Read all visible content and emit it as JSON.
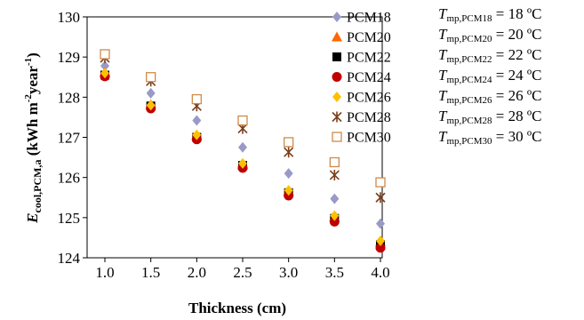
{
  "chart_data": {
    "type": "scatter",
    "xlabel": "Thickness (cm)",
    "ylabel": {
      "symbol": "E",
      "subscript": "cool,PCM,a",
      "unit_open": " (kWh m",
      "unit_sup1": "-2",
      "unit_mid": "year",
      "unit_sup2": "-1",
      "unit_close": ")"
    },
    "x": [
      1.0,
      1.5,
      2.0,
      2.5,
      3.0,
      3.5,
      4.0
    ],
    "x_tick_labels": [
      "1.0",
      "1.5",
      "2.0",
      "2.5",
      "3.0",
      "3.5",
      "4.0"
    ],
    "xlim": [
      1.0,
      4.0
    ],
    "ylim": [
      124,
      130
    ],
    "y_ticks": [
      124,
      125,
      126,
      127,
      128,
      129,
      130
    ],
    "grid": false,
    "legend_position": "right",
    "series": [
      {
        "name": "PCM18",
        "marker": "diamond",
        "color": "#9a9ac8",
        "values": [
          128.78,
          128.1,
          127.42,
          126.75,
          126.1,
          125.47,
          124.85
        ]
      },
      {
        "name": "PCM20",
        "marker": "triangle",
        "color": "#ff6600",
        "values": [
          128.62,
          127.82,
          127.05,
          126.32,
          125.66,
          125.02,
          124.4
        ]
      },
      {
        "name": "PCM22",
        "marker": "square",
        "color": "#000000",
        "values": [
          128.55,
          127.78,
          127.0,
          126.3,
          125.62,
          124.98,
          124.33
        ]
      },
      {
        "name": "PCM24",
        "marker": "circle",
        "color": "#c00000",
        "values": [
          128.52,
          127.72,
          126.95,
          126.24,
          125.55,
          124.9,
          124.25
        ]
      },
      {
        "name": "PCM26",
        "marker": "diamond",
        "color": "#ffc000",
        "values": [
          128.6,
          127.8,
          127.06,
          126.35,
          125.68,
          125.05,
          124.42
        ]
      },
      {
        "name": "PCM28",
        "marker": "star",
        "color": "#7a3f1d",
        "values": [
          128.98,
          128.4,
          127.78,
          127.22,
          126.63,
          126.06,
          125.5
        ]
      },
      {
        "name": "PCM30",
        "marker": "open-square",
        "color": "#d08a4a",
        "values": [
          129.07,
          128.5,
          127.95,
          127.42,
          126.88,
          126.38,
          125.88
        ]
      }
    ]
  },
  "annotations": [
    {
      "symbol": "T",
      "sub": "mp,PCM18",
      "text": " = 18 ºC"
    },
    {
      "symbol": "T",
      "sub": "mp,PCM20",
      "text": " = 20 ºC"
    },
    {
      "symbol": "T",
      "sub": "mp,PCM22",
      "text": " = 22 ºC"
    },
    {
      "symbol": "T",
      "sub": "mp,PCM24",
      "text": " = 24 ºC"
    },
    {
      "symbol": "T",
      "sub": "mp,PCM26",
      "text": " = 26 ºC"
    },
    {
      "symbol": "T",
      "sub": "mp,PCM28",
      "text": " = 28 ºC"
    },
    {
      "symbol": "T",
      "sub": "mp,PCM30",
      "text": " = 30 ºC"
    }
  ]
}
